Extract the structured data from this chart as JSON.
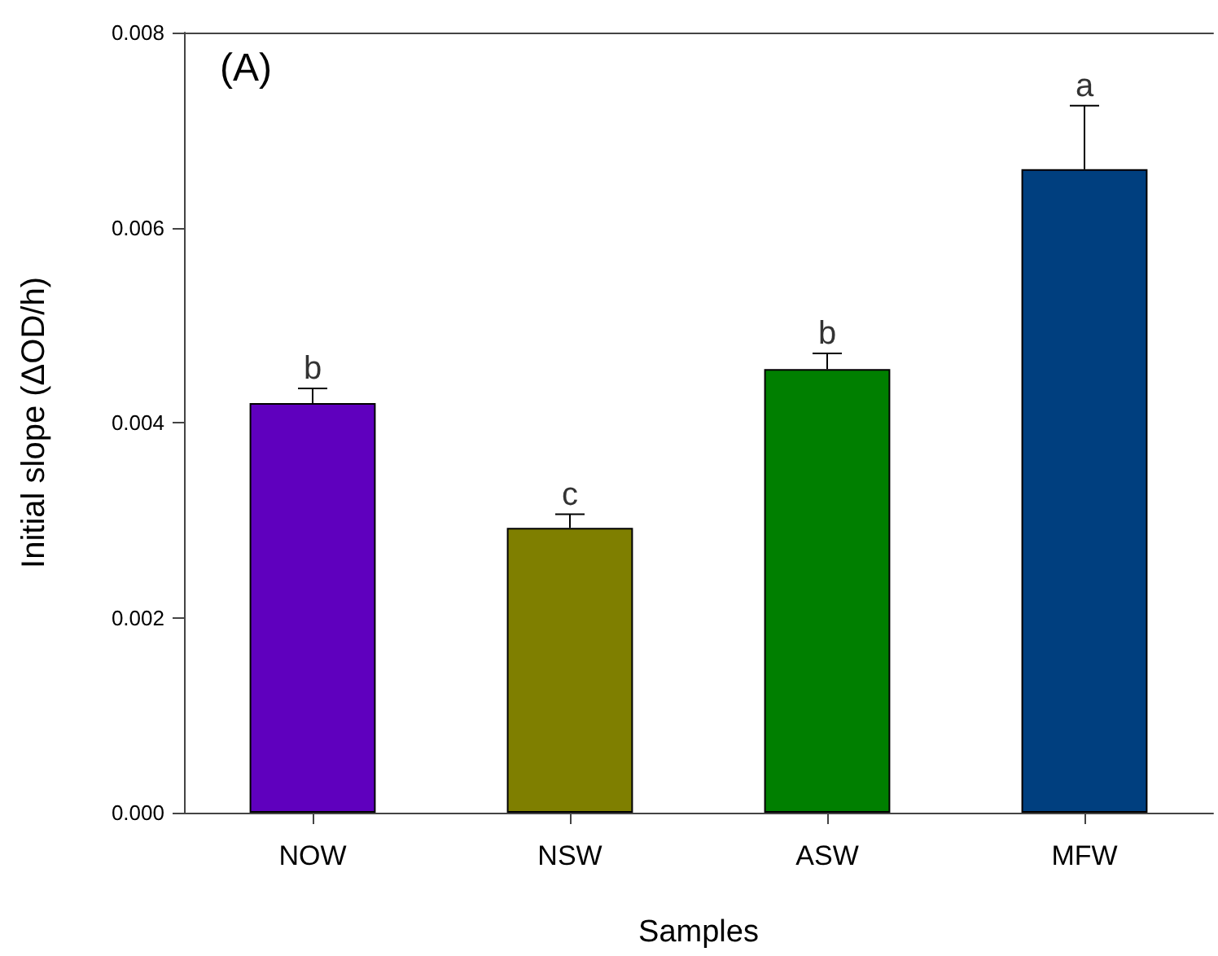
{
  "chart_data": {
    "type": "bar",
    "xlabel": "Samples",
    "ylabel": "Initial slope (ΔOD/h)",
    "categories": [
      "NOW",
      "NSW",
      "ASW",
      "MFW"
    ],
    "values": [
      0.0042,
      0.00292,
      0.00455,
      0.0066
    ],
    "errors": [
      0.00015,
      0.00014,
      0.00016,
      0.00065
    ],
    "colors": [
      "#5f00be",
      "#7f7f00",
      "#007f00",
      "#003f7f"
    ],
    "ylim": [
      0,
      0.008
    ],
    "yticks": [
      {
        "value": 0,
        "label": "0.000"
      },
      {
        "value": 0.002,
        "label": "0.002"
      },
      {
        "value": 0.004,
        "label": "0.004"
      },
      {
        "value": 0.006,
        "label": "0.006"
      },
      {
        "value": 0.008,
        "label": "0.008"
      }
    ],
    "annotations": [
      "(A)",
      {
        "text": "b",
        "x": "NOW",
        "y": 0.00435
      },
      {
        "text": "c",
        "x": "NSW",
        "y": 0.00306
      },
      {
        "text": "b",
        "x": "ASW",
        "y": 0.00471
      },
      {
        "text": "a",
        "x": "MFW",
        "y": 0.00725
      }
    ]
  }
}
